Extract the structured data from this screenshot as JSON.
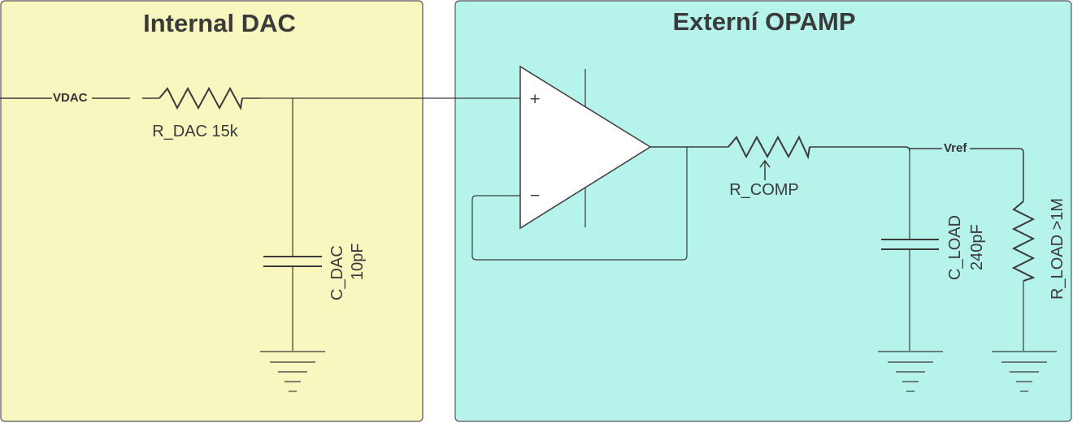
{
  "panels": {
    "internal": {
      "title": "Internal DAC",
      "fill": "#f8f7c0"
    },
    "external": {
      "title": "Externí OPAMP",
      "fill": "#b6f3eb"
    }
  },
  "nets": {
    "vdac": "VDAC",
    "vref": "Vref"
  },
  "components": {
    "r_dac": "R_DAC 15k",
    "c_dac": {
      "name": "C_DAC",
      "value": "10pF"
    },
    "r_comp": "R_COMP",
    "c_load": {
      "name": "C_LOAD",
      "value": "240pF"
    },
    "r_load": "R_LOAD >1M"
  },
  "opamp": {
    "plus": "+",
    "minus": "−"
  },
  "colors": {
    "wire": "#3a3a3a",
    "panel_border": "#555555"
  }
}
